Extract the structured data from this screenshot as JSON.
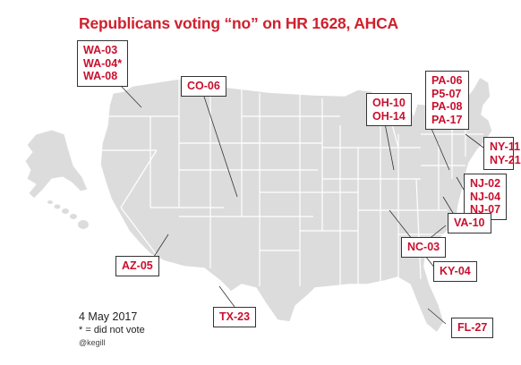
{
  "title": "Republicans voting “no” on HR 1628, AHCA",
  "colors": {
    "title": "#d0202e",
    "label_text": "#c8102e",
    "state_fill": "#dcdcdc",
    "state_border": "#ffffff",
    "leader_line": "#333333"
  },
  "labels": [
    {
      "id": "wa",
      "lines": [
        "WA-03",
        "WA-04*",
        "WA-08"
      ]
    },
    {
      "id": "co",
      "lines": [
        "CO-06"
      ]
    },
    {
      "id": "oh",
      "lines": [
        "OH-10",
        "OH-14"
      ]
    },
    {
      "id": "pa",
      "lines": [
        "PA-06",
        "P5-07",
        "PA-08",
        "PA-17"
      ]
    },
    {
      "id": "ny",
      "lines": [
        "NY-11",
        "NY-21"
      ]
    },
    {
      "id": "nj",
      "lines": [
        "NJ-02",
        "NJ-04",
        "NJ-07"
      ]
    },
    {
      "id": "va",
      "lines": [
        "VA-10"
      ]
    },
    {
      "id": "nc",
      "lines": [
        "NC-03"
      ]
    },
    {
      "id": "ky",
      "lines": [
        "KY-04"
      ]
    },
    {
      "id": "az",
      "lines": [
        "AZ-05"
      ]
    },
    {
      "id": "tx",
      "lines": [
        "TX-23"
      ]
    },
    {
      "id": "fl",
      "lines": [
        "FL-27"
      ]
    }
  ],
  "notes": {
    "date": "4 May 2017",
    "footnote": "* = did not vote",
    "credit": "@kegill"
  }
}
